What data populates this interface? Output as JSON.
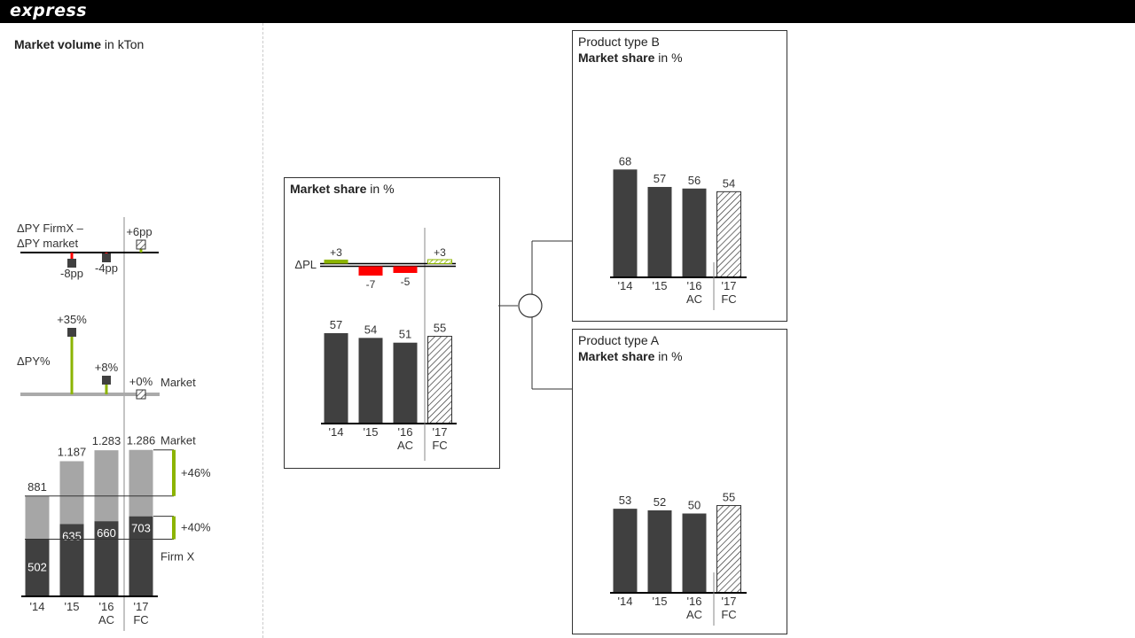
{
  "brand": "express",
  "left_title": {
    "bold": "Market volume",
    "unit": " in kTon"
  },
  "left": {
    "categories": [
      "'14",
      "'15",
      "'16",
      "'17"
    ],
    "category_sub": [
      "",
      "",
      "AC",
      "FC"
    ],
    "market": [
      881,
      1187,
      1283,
      1286
    ],
    "market_labels": [
      "881",
      "1.187",
      "1.283",
      "1.286"
    ],
    "firm": [
      502,
      635,
      660,
      703
    ],
    "firm_labels": [
      "502",
      "635",
      "660",
      "703"
    ],
    "market_label": "Market",
    "firm_label": "Firm X",
    "delta_market_label": "+46%",
    "delta_firm_label": "+40%",
    "dpy_label": "ΔPY%",
    "dpy_values": [
      35,
      8,
      0
    ],
    "dpy_labels": [
      "+35%",
      "+8%",
      "+0%"
    ],
    "dpy_market_label": "Market",
    "diff_label_line1": "ΔPY FirmX –",
    "diff_label_line2": "ΔPY market",
    "diff_values": [
      -8,
      -4,
      6
    ],
    "diff_labels": [
      "-8pp",
      "-4pp",
      "+6pp"
    ]
  },
  "center": {
    "title_bold": "Market share",
    "title_unit": " in %",
    "categories": [
      "'14",
      "'15",
      "'16",
      "'17"
    ],
    "category_sub": [
      "",
      "",
      "AC",
      "FC"
    ],
    "values": [
      57,
      54,
      51,
      55
    ],
    "dpl_label": "ΔPL",
    "dpl_values": [
      3,
      -7,
      -5,
      3
    ],
    "dpl_labels": [
      "+3",
      "-7",
      "-5",
      "+3"
    ]
  },
  "panel_b": {
    "title_line1": "Product type B",
    "title_bold": "Market share",
    "title_unit": " in %",
    "categories": [
      "'14",
      "'15",
      "'16",
      "'17"
    ],
    "category_sub": [
      "",
      "",
      "AC",
      "FC"
    ],
    "values": [
      68,
      57,
      56,
      54
    ]
  },
  "panel_a": {
    "title_line1": "Product type A",
    "title_bold": "Market share",
    "title_unit": " in %",
    "categories": [
      "'14",
      "'15",
      "'16",
      "'17"
    ],
    "category_sub": [
      "",
      "",
      "AC",
      "FC"
    ],
    "values": [
      53,
      52,
      50,
      55
    ]
  },
  "colors": {
    "actual": "#404040",
    "market": "#a6a6a6",
    "positive": "#8cb400",
    "negative": "#ff0000",
    "axis": "#000000"
  },
  "chart_data": [
    {
      "type": "bar",
      "title": "Market volume in kTon",
      "categories": [
        "'14",
        "'15",
        "'16 AC",
        "'17 FC"
      ],
      "series": [
        {
          "name": "Market",
          "values": [
            881,
            1187,
            1283,
            1286
          ]
        },
        {
          "name": "Firm X",
          "values": [
            502,
            635,
            660,
            703
          ]
        }
      ],
      "annotations": [
        "+46%",
        "+40%"
      ]
    },
    {
      "type": "bar",
      "title": "ΔPY%",
      "categories": [
        "'15",
        "'16 AC",
        "'17 FC"
      ],
      "values": [
        35,
        8,
        0
      ]
    },
    {
      "type": "bar",
      "title": "ΔPY FirmX – ΔPY market",
      "categories": [
        "'15",
        "'16 AC",
        "'17 FC"
      ],
      "values": [
        -8,
        -4,
        6
      ]
    },
    {
      "type": "bar",
      "title": "Market share in %",
      "categories": [
        "'14",
        "'15",
        "'16 AC",
        "'17 FC"
      ],
      "values": [
        57,
        54,
        51,
        55
      ],
      "delta_label": "ΔPL",
      "delta_values": [
        3,
        -7,
        -5,
        3
      ]
    },
    {
      "type": "bar",
      "title": "Product type B Market share in %",
      "categories": [
        "'14",
        "'15",
        "'16 AC",
        "'17 FC"
      ],
      "values": [
        68,
        57,
        56,
        54
      ]
    },
    {
      "type": "bar",
      "title": "Product type A Market share in %",
      "categories": [
        "'14",
        "'15",
        "'16 AC",
        "'17 FC"
      ],
      "values": [
        53,
        52,
        50,
        55
      ]
    }
  ]
}
